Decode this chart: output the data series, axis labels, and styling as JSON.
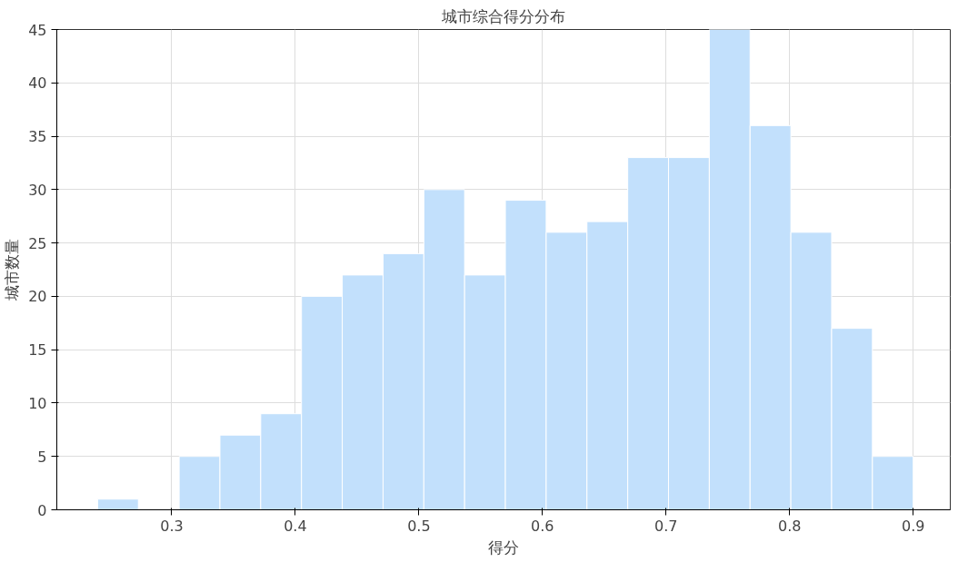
{
  "chart_data": {
    "type": "histogram",
    "title": "城市综合得分分布",
    "xlabel": "得分",
    "ylabel": "城市数量",
    "bins": [
      0.24,
      0.273,
      0.306,
      0.339,
      0.372,
      0.405,
      0.438,
      0.471,
      0.504,
      0.537,
      0.57,
      0.603,
      0.636,
      0.669,
      0.702,
      0.735,
      0.768,
      0.801,
      0.834,
      0.867,
      0.9
    ],
    "values": [
      1,
      0,
      5,
      7,
      9,
      20,
      22,
      24,
      30,
      22,
      29,
      26,
      27,
      33,
      33,
      45,
      36,
      26,
      17,
      5
    ],
    "color": "#c2e0fc",
    "xlim": [
      0.207,
      0.93
    ],
    "xticks": [
      0.3,
      0.4,
      0.5,
      0.6,
      0.7,
      0.8,
      0.9
    ],
    "ylim": [
      0,
      45
    ],
    "yticks": [
      0,
      5,
      10,
      15,
      20,
      25,
      30,
      35,
      40,
      45
    ],
    "grid": true
  }
}
